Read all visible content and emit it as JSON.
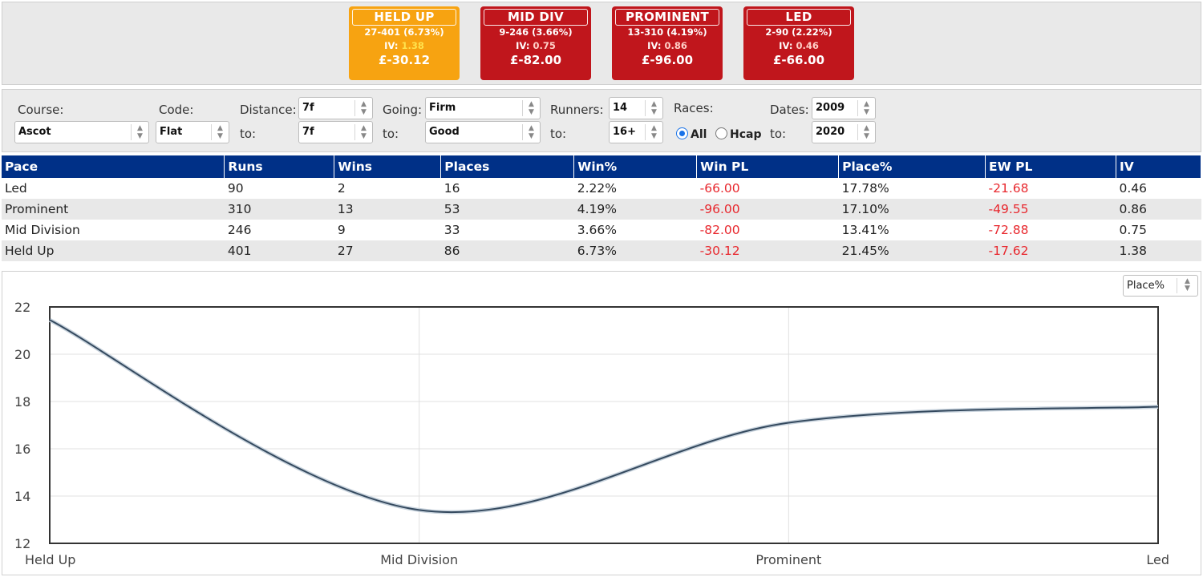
{
  "cards": [
    {
      "title": "HELD UP",
      "record": "27-401 (6.73%)",
      "iv_label": "IV:",
      "iv": "1.38",
      "pl": "£-30.12",
      "color": "#f7a311",
      "iv_color": "#ffe24d"
    },
    {
      "title": "MID DIV",
      "record": "9-246 (3.66%)",
      "iv_label": "IV:",
      "iv": "0.75",
      "pl": "£-82.00",
      "color": "#c0161c",
      "iv_color": "#ffd0c8"
    },
    {
      "title": "PROMINENT",
      "record": "13-310 (4.19%)",
      "iv_label": "IV:",
      "iv": "0.86",
      "pl": "£-96.00",
      "color": "#c0161c",
      "iv_color": "#ffd0c8"
    },
    {
      "title": "LED",
      "record": "2-90 (2.22%)",
      "iv_label": "IV:",
      "iv": "0.46",
      "pl": "£-66.00",
      "color": "#c0161c",
      "iv_color": "#ffd0c8"
    }
  ],
  "filters": {
    "course_label": "Course:",
    "course": "Ascot",
    "code_label": "Code:",
    "code": "Flat",
    "distance_label": "Distance:",
    "distance_from": "7f",
    "distance_to": "7f",
    "going_label": "Going:",
    "going_from": "Firm",
    "going_to": "Good",
    "runners_label": "Runners:",
    "runners_from": "14",
    "runners_to": "16+",
    "races_label": "Races:",
    "races_all": "All",
    "races_hcap": "Hcap",
    "dates_label": "Dates:",
    "dates_from": "2009",
    "dates_to": "2020",
    "to_label": "to:"
  },
  "table": {
    "headers": [
      "Pace",
      "Runs",
      "Wins",
      "Places",
      "Win%",
      "Win PL",
      "Place%",
      "EW PL",
      "IV"
    ],
    "rows": [
      [
        "Led",
        "90",
        "2",
        "16",
        "2.22%",
        "-66.00",
        "17.78%",
        "-21.68",
        "0.46"
      ],
      [
        "Prominent",
        "310",
        "13",
        "53",
        "4.19%",
        "-96.00",
        "17.10%",
        "-49.55",
        "0.86"
      ],
      [
        "Mid Division",
        "246",
        "9",
        "33",
        "3.66%",
        "-82.00",
        "13.41%",
        "-72.88",
        "0.75"
      ],
      [
        "Held Up",
        "401",
        "27",
        "86",
        "6.73%",
        "-30.12",
        "21.45%",
        "-17.62",
        "1.38"
      ]
    ]
  },
  "metric_select": "Place%",
  "chart_data": {
    "type": "line",
    "categories": [
      "Held Up",
      "Mid Division",
      "Prominent",
      "Led"
    ],
    "values": [
      21.45,
      13.41,
      17.1,
      17.78
    ],
    "ylim": [
      12,
      22
    ],
    "yticks": [
      12,
      14,
      16,
      18,
      20,
      22
    ],
    "line_color": "#34495e",
    "grid": true
  }
}
